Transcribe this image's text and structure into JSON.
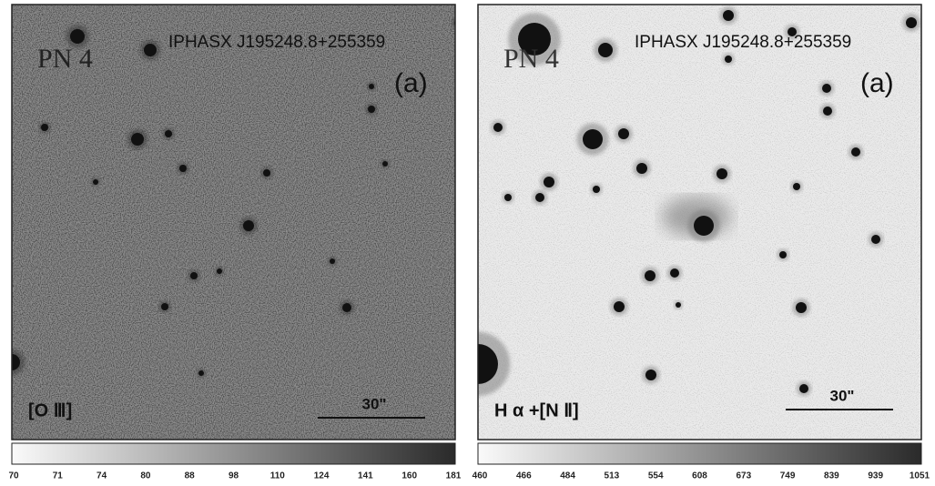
{
  "panels": [
    {
      "object": "PN 4",
      "name": "IPHASX J195248.8+255359",
      "tag": "(a)",
      "filter": "[O Ⅲ]",
      "scale": "30\"",
      "colorbar": [
        70,
        71,
        74,
        80,
        88,
        98,
        110,
        124,
        141,
        160,
        181
      ]
    },
    {
      "object": "PN 4",
      "name": "IPHASX J195248.8+255359",
      "tag": "(a)",
      "filter": "H α +[N Ⅱ]",
      "scale": "30\"",
      "colorbar": [
        460,
        466,
        484,
        513,
        554,
        608,
        673,
        749,
        839,
        939,
        1051
      ]
    }
  ]
}
